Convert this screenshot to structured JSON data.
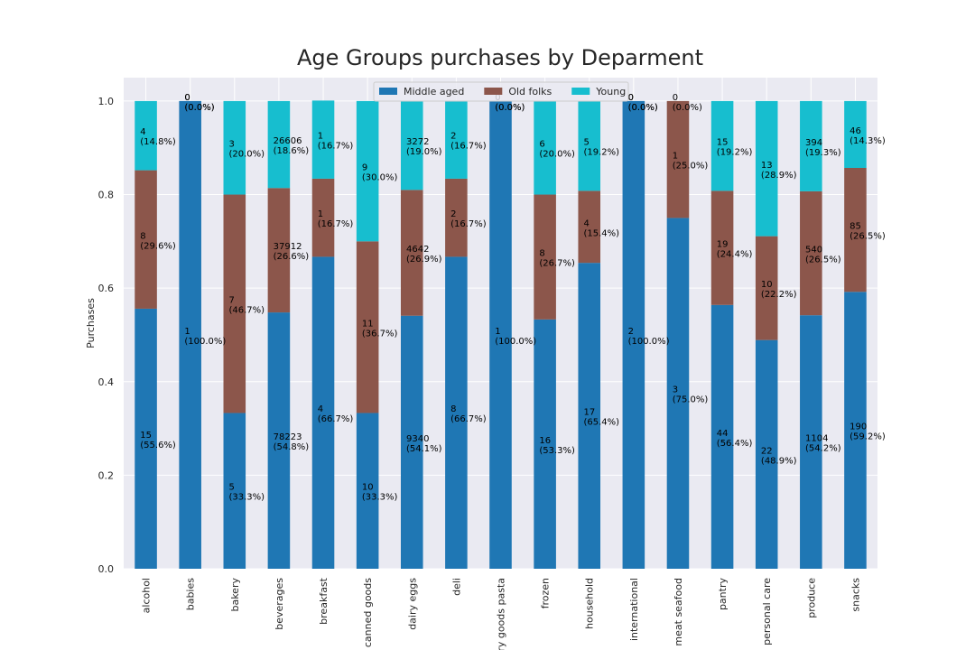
{
  "chart_data": {
    "type": "stacked_bar_100",
    "title": "Age Groups purchases by Deparment",
    "y_label": "Purchases",
    "categories": [
      "alcohol",
      "babies",
      "bakery",
      "beverages",
      "breakfast",
      "canned goods",
      "dairy eggs",
      "deli",
      "dry goods pasta",
      "frozen",
      "household",
      "international",
      "meat seafood",
      "pantry",
      "personal care",
      "produce",
      "snacks"
    ],
    "series": [
      {
        "name": "Middle aged",
        "color": "#1f77b4",
        "values": [
          0.556,
          1.0,
          0.333,
          0.548,
          0.667,
          0.333,
          0.541,
          0.667,
          1.0,
          0.533,
          0.654,
          1.0,
          0.75,
          0.564,
          0.489,
          0.542,
          0.592
        ],
        "counts": [
          15,
          1,
          5,
          78223,
          4,
          10,
          9340,
          8,
          1,
          16,
          17,
          2,
          3,
          44,
          22,
          1104,
          190
        ],
        "value_labels": [
          "(55.6%)",
          "(100.0%)",
          "(33.3%)",
          "(54.8%)",
          "(66.7%)",
          "(33.3%)",
          "(54.1%)",
          "(66.7%)",
          "(100.0%)",
          "(53.3%)",
          "(65.4%)",
          "(100.0%)",
          "(75.0%)",
          "(56.4%)",
          "(48.9%)",
          "(54.2%)",
          "(59.2%)"
        ]
      },
      {
        "name": "Old folks",
        "color": "#8c564b",
        "values": [
          0.296,
          0.0,
          0.467,
          0.266,
          0.167,
          0.367,
          0.269,
          0.167,
          0.0,
          0.267,
          0.154,
          0.0,
          0.25,
          0.244,
          0.222,
          0.265,
          0.265
        ],
        "counts": [
          8,
          0,
          7,
          37912,
          1,
          11,
          4642,
          2,
          0,
          8,
          4,
          0,
          1,
          19,
          10,
          540,
          85
        ],
        "value_labels": [
          "(29.6%)",
          "(0.0%)",
          "(46.7%)",
          "(26.6%)",
          "(16.7%)",
          "(36.7%)",
          "(26.9%)",
          "(16.7%)",
          "(0.0%)",
          "(26.7%)",
          "(15.4%)",
          "(0.0%)",
          "(25.0%)",
          "(24.4%)",
          "(22.2%)",
          "(26.5%)",
          "(26.5%)"
        ]
      },
      {
        "name": "Young",
        "color": "#17becf",
        "values": [
          0.148,
          0.0,
          0.2,
          0.186,
          0.167,
          0.3,
          0.19,
          0.167,
          0.0,
          0.2,
          0.192,
          0.0,
          0.0,
          0.192,
          0.289,
          0.193,
          0.143
        ],
        "counts": [
          4,
          0,
          3,
          26606,
          1,
          9,
          3272,
          2,
          0,
          6,
          5,
          0,
          0,
          15,
          13,
          394,
          46
        ],
        "value_labels": [
          "(14.8%)",
          "(0.0%)",
          "(20.0%)",
          "(18.6%)",
          "(16.7%)",
          "(30.0%)",
          "(19.0%)",
          "(16.7%)",
          "(0.0%)",
          "(20.0%)",
          "(19.2%)",
          "(0.0%)",
          "(0.0%)",
          "(19.2%)",
          "(28.9%)",
          "(19.3%)",
          "(14.3%)"
        ]
      }
    ],
    "ylim": [
      0,
      1.05
    ],
    "yticks": [
      {
        "value": 0,
        "label": "0.0"
      },
      {
        "value": 0.2,
        "label": "0.2"
      },
      {
        "value": 0.4,
        "label": "0.4"
      },
      {
        "value": 0.6,
        "label": "0.6"
      },
      {
        "value": 0.8,
        "label": "0.8"
      },
      {
        "value": 1,
        "label": "1.0"
      }
    ],
    "grid": true,
    "legend": "upper center"
  }
}
